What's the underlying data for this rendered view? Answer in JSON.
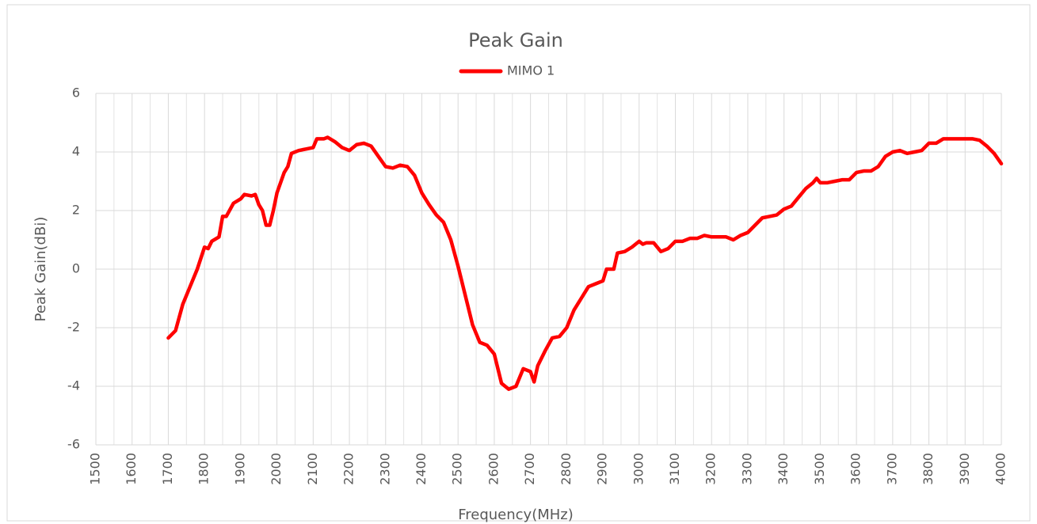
{
  "chart_data": {
    "type": "line",
    "title": "Peak Gain",
    "x_label": "Frequency(MHz)",
    "y_label": "Peak Gain(dBi)",
    "xlim": [
      1500,
      4000
    ],
    "ylim": [
      -6,
      6
    ],
    "xticks": [
      1500,
      1600,
      1700,
      1800,
      1900,
      2000,
      2100,
      2200,
      2300,
      2400,
      2500,
      2600,
      2700,
      2800,
      2900,
      3000,
      3100,
      3200,
      3300,
      3400,
      3500,
      3600,
      3700,
      3800,
      3900,
      4000
    ],
    "xminorticks": [
      1550,
      1650,
      1750,
      1850,
      1950,
      2050,
      2150,
      2250,
      2350,
      2450,
      2550,
      2650,
      2750,
      2850,
      2950,
      3050,
      3150,
      3250,
      3350,
      3450,
      3550,
      3650,
      3750,
      3850,
      3950
    ],
    "yticks": [
      -6,
      -4,
      -2,
      0,
      2,
      4,
      6
    ],
    "grid": true,
    "legend": "top",
    "x": [
      1700,
      1720,
      1740,
      1760,
      1780,
      1800,
      1810,
      1820,
      1840,
      1850,
      1860,
      1880,
      1900,
      1910,
      1930,
      1940,
      1950,
      1960,
      1970,
      1980,
      1990,
      2000,
      2020,
      2030,
      2040,
      2060,
      2080,
      2100,
      2110,
      2130,
      2140,
      2160,
      2180,
      2200,
      2220,
      2240,
      2260,
      2280,
      2300,
      2320,
      2340,
      2360,
      2380,
      2400,
      2420,
      2440,
      2460,
      2480,
      2500,
      2520,
      2540,
      2560,
      2580,
      2600,
      2620,
      2640,
      2660,
      2680,
      2700,
      2710,
      2720,
      2740,
      2760,
      2780,
      2800,
      2820,
      2840,
      2860,
      2880,
      2900,
      2910,
      2930,
      2940,
      2960,
      2980,
      3000,
      3010,
      3020,
      3040,
      3060,
      3080,
      3100,
      3120,
      3140,
      3160,
      3180,
      3200,
      3220,
      3240,
      3260,
      3280,
      3300,
      3320,
      3340,
      3360,
      3380,
      3400,
      3420,
      3440,
      3460,
      3480,
      3490,
      3500,
      3520,
      3540,
      3560,
      3580,
      3600,
      3620,
      3640,
      3660,
      3680,
      3700,
      3720,
      3740,
      3760,
      3780,
      3800,
      3820,
      3840,
      3860,
      3880,
      3900,
      3920,
      3940,
      3960,
      3980,
      4000
    ],
    "series": [
      {
        "name": "MIMO 1",
        "color": "#ff0000",
        "values": [
          -2.35,
          -2.1,
          -1.2,
          -0.6,
          0.0,
          0.75,
          0.7,
          0.95,
          1.1,
          1.8,
          1.8,
          2.25,
          2.4,
          2.55,
          2.5,
          2.55,
          2.2,
          2.0,
          1.5,
          1.5,
          2.0,
          2.6,
          3.3,
          3.5,
          3.95,
          4.05,
          4.1,
          4.15,
          4.45,
          4.45,
          4.5,
          4.35,
          4.15,
          4.05,
          4.25,
          4.3,
          4.2,
          3.85,
          3.5,
          3.45,
          3.55,
          3.5,
          3.2,
          2.6,
          2.2,
          1.85,
          1.6,
          1.0,
          0.1,
          -0.9,
          -1.9,
          -2.5,
          -2.6,
          -2.9,
          -3.9,
          -4.1,
          -4.0,
          -3.4,
          -3.5,
          -3.85,
          -3.3,
          -2.8,
          -2.35,
          -2.3,
          -2.0,
          -1.4,
          -1.0,
          -0.6,
          -0.5,
          -0.4,
          0.0,
          0.0,
          0.55,
          0.6,
          0.75,
          0.95,
          0.85,
          0.9,
          0.9,
          0.6,
          0.7,
          0.95,
          0.95,
          1.05,
          1.05,
          1.15,
          1.1,
          1.1,
          1.1,
          1.0,
          1.15,
          1.25,
          1.5,
          1.75,
          1.8,
          1.85,
          2.05,
          2.15,
          2.45,
          2.75,
          2.95,
          3.1,
          2.95,
          2.95,
          3.0,
          3.05,
          3.05,
          3.3,
          3.35,
          3.35,
          3.5,
          3.85,
          4.0,
          4.05,
          3.95,
          4.0,
          4.05,
          4.3,
          4.3,
          4.45,
          4.45,
          4.45,
          4.45,
          4.45,
          4.4,
          4.2,
          3.95,
          3.6
        ]
      }
    ]
  }
}
